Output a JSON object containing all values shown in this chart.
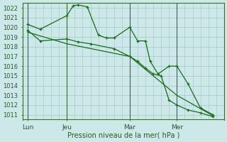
{
  "background_color": "#cce8e8",
  "grid_color": "#aacccc",
  "line_color": "#1a6b1a",
  "text_color": "#2a5a2a",
  "xlabel": "Pression niveau de la mer( hPa )",
  "ylim": [
    1010.5,
    1022.5
  ],
  "yticks": [
    1011,
    1012,
    1013,
    1014,
    1015,
    1016,
    1017,
    1018,
    1019,
    1020,
    1021,
    1022
  ],
  "day_labels": [
    "Lun",
    "Jeu",
    "Mar",
    "Mer"
  ],
  "day_positions": [
    0,
    2.5,
    6.5,
    9.5
  ],
  "xlim": [
    -0.3,
    12.5
  ],
  "series": [
    {
      "x": [
        0,
        0.8,
        2.5,
        2.9,
        3.2,
        3.8,
        4.5,
        5.0,
        5.5,
        6.5,
        7.0,
        7.5,
        7.8,
        8.3,
        9.0,
        9.5,
        10.2,
        11.0,
        11.8
      ],
      "y": [
        1020.3,
        1019.8,
        1021.2,
        1022.2,
        1022.3,
        1022.1,
        1019.2,
        1018.9,
        1018.9,
        1020.0,
        1018.6,
        1018.6,
        1016.5,
        1015.2,
        1016.0,
        1016.0,
        1014.2,
        1011.7,
        1011.0
      ],
      "marker": "+"
    },
    {
      "x": [
        0,
        0.8,
        2.5,
        3.2,
        4.0,
        5.5,
        6.5,
        7.0,
        7.5,
        8.0,
        8.5,
        9.0,
        9.5,
        10.2,
        11.0,
        11.8
      ],
      "y": [
        1019.7,
        1018.6,
        1018.8,
        1018.5,
        1018.3,
        1017.8,
        1017.0,
        1016.5,
        1015.8,
        1015.2,
        1015.0,
        1012.5,
        1012.0,
        1011.5,
        1011.2,
        1010.8
      ],
      "marker": "+"
    },
    {
      "x": [
        0,
        2.5,
        6.5,
        9.5,
        11.8
      ],
      "y": [
        1019.5,
        1018.3,
        1017.0,
        1013.0,
        1010.9
      ],
      "marker": null
    }
  ]
}
